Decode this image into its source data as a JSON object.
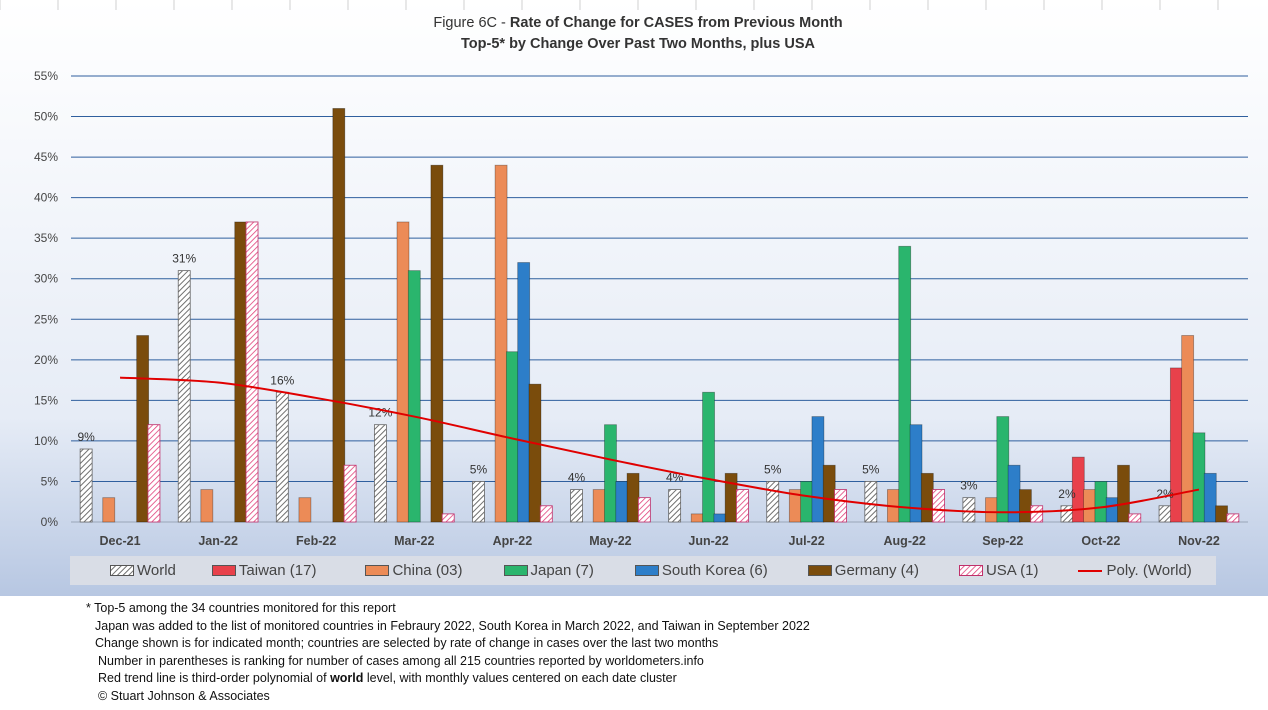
{
  "chart_data": {
    "type": "bar",
    "title": "Figure 6C - Rate of Change for CASES from Previous Month",
    "subtitle": "Top-5* by Change Over Past Two Months, plus USA",
    "title_prefix": "Figure 6C - ",
    "title_bold": "Rate of Change for CASES from Previous Month",
    "xlabel": "",
    "ylabel": "",
    "ylim": [
      0,
      55
    ],
    "yticks": [
      "0%",
      "5%",
      "10%",
      "15%",
      "20%",
      "25%",
      "30%",
      "35%",
      "40%",
      "45%",
      "50%",
      "55%"
    ],
    "grid": true,
    "legend_position": "bottom",
    "categories": [
      "Dec-21",
      "Jan-22",
      "Feb-22",
      "Mar-22",
      "Apr-22",
      "May-22",
      "Jun-22",
      "Jul-22",
      "Aug-22",
      "Sep-22",
      "Oct-22",
      "Nov-22"
    ],
    "series": [
      {
        "name": "World",
        "color": "#c8c8c8",
        "pattern": "hatch-dark",
        "values": [
          9,
          31,
          16,
          12,
          5,
          4,
          4,
          5,
          5,
          3,
          2,
          2
        ]
      },
      {
        "name": "Taiwan (17)",
        "color": "#e8414b",
        "pattern": "solid",
        "values": [
          null,
          null,
          null,
          null,
          null,
          null,
          null,
          null,
          null,
          null,
          8,
          19
        ]
      },
      {
        "name": "China (03)",
        "color": "#ec8b57",
        "pattern": "solid",
        "values": [
          3,
          4,
          3,
          37,
          44,
          4,
          1,
          4,
          4,
          3,
          4,
          23
        ]
      },
      {
        "name": "Japan (7)",
        "color": "#2ab56d",
        "pattern": "solid",
        "values": [
          null,
          null,
          null,
          31,
          21,
          12,
          16,
          5,
          34,
          13,
          5,
          11
        ]
      },
      {
        "name": "South Korea (6)",
        "color": "#2d7ec9",
        "pattern": "solid",
        "values": [
          null,
          null,
          null,
          null,
          32,
          5,
          1,
          13,
          12,
          7,
          3,
          6
        ]
      },
      {
        "name": "Germany (4)",
        "color": "#7a4c0c",
        "pattern": "solid",
        "values": [
          23,
          37,
          51,
          44,
          17,
          6,
          6,
          7,
          6,
          4,
          7,
          2
        ]
      },
      {
        "name": "USA (1)",
        "color": "#f3c0d8",
        "pattern": "hatch-pink",
        "values": [
          12,
          37,
          7,
          1,
          2,
          3,
          4,
          4,
          4,
          2,
          1,
          1
        ]
      }
    ],
    "data_labels": [
      "9%",
      "31%",
      "16%",
      "12%",
      "5%",
      "4%",
      "4%",
      "5%",
      "5%",
      "3%",
      "2%",
      "2%"
    ],
    "trendline": {
      "name": "Poly. (World)",
      "color": "#e00000",
      "type": "third-order polynomial",
      "values": [
        17.8,
        17.2,
        15.3,
        13.0,
        10.3,
        7.7,
        5.3,
        3.2,
        1.8,
        1.2,
        1.8,
        4.0
      ]
    }
  },
  "legend": {
    "items": [
      {
        "label": "World",
        "key": "world"
      },
      {
        "label": "Taiwan (17)",
        "key": "taiwan"
      },
      {
        "label": "China (03)",
        "key": "china"
      },
      {
        "label": "Japan (7)",
        "key": "japan"
      },
      {
        "label": "South Korea (6)",
        "key": "south-korea"
      },
      {
        "label": "Germany (4)",
        "key": "germany"
      },
      {
        "label": "USA (1)",
        "key": "usa"
      },
      {
        "label": "Poly. (World)",
        "key": "poly-world"
      }
    ]
  },
  "notes": {
    "line1": "* Top-5 among the 34 countries monitored for this report",
    "line2": "Japan was added to the list of monitored countries in Febraury 2022, South Korea in March 2022, and Taiwan in September 2022",
    "line3": "Change shown is for indicated month; countries are selected by rate of change in cases over the last two months",
    "line4": "Number in parentheses is ranking for number of cases among all 215 countries reported by worldometers.info",
    "line5_pre": "Red trend line is third-order polynomial of ",
    "line5_bold": "world",
    "line5_post": " level, with monthly values centered on each date cluster",
    "line6": "© Stuart Johnson & Associates"
  }
}
